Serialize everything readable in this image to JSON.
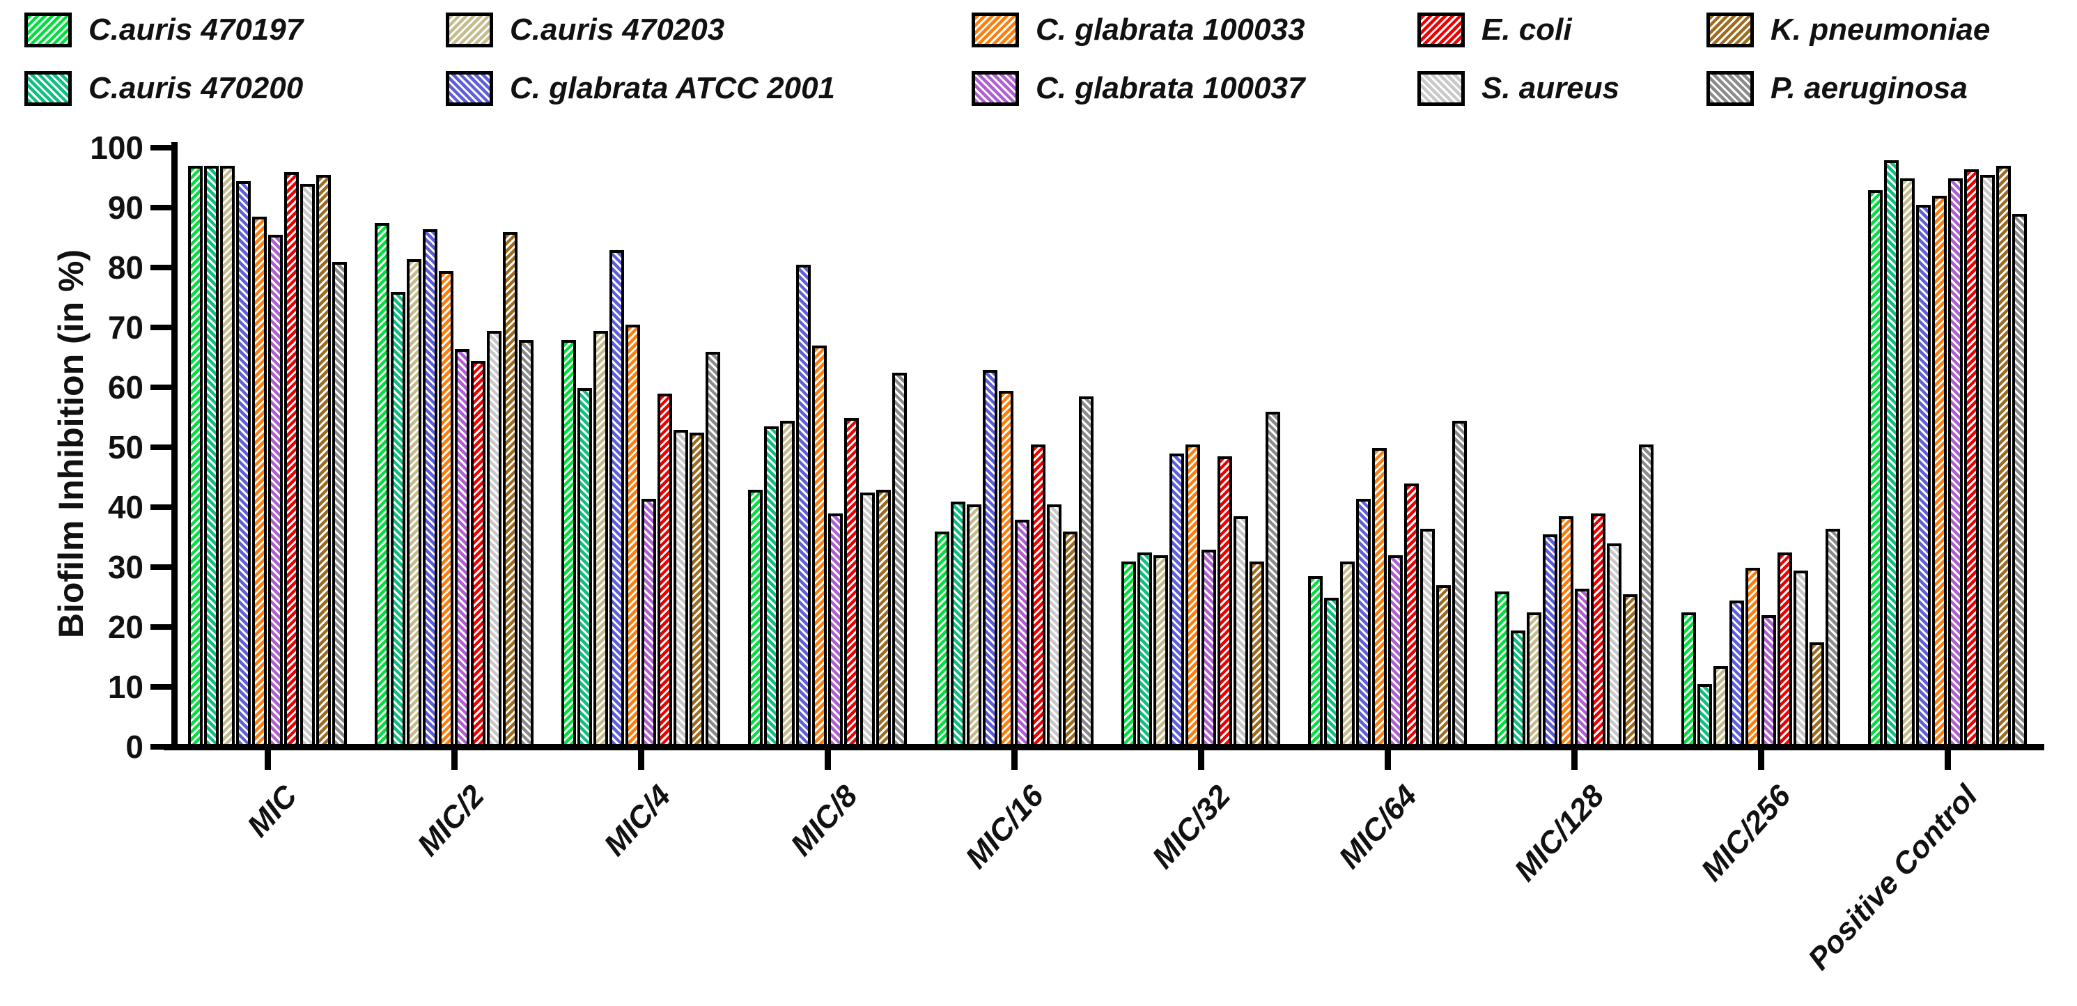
{
  "figure": {
    "background": "#ffffff",
    "axis_color": "#000000",
    "text_color": "#111111"
  },
  "chart_data": {
    "type": "bar",
    "title": "",
    "xlabel": "",
    "ylabel": "Biofilm Inhibition (in %)",
    "ylim": [
      0,
      100
    ],
    "ytick_step": 10,
    "ytick_labels": [
      "0",
      "10",
      "20",
      "30",
      "40",
      "50",
      "60",
      "70",
      "80",
      "90",
      "100"
    ],
    "grid": false,
    "legend_position": "top",
    "bar_style": "hatched, black outline",
    "categories": [
      "MIC",
      "MIC/2",
      "MIC/4",
      "MIC/8",
      "MIC/16",
      "MIC/32",
      "MIC/64",
      "MIC/128",
      "MIC/256",
      "Positive Control"
    ],
    "series": [
      {
        "name": "C.auris 470197",
        "color": "#00E03C",
        "hatch": "diagonal-up",
        "values": [
          96,
          86.5,
          67,
          42,
          35,
          30,
          27.5,
          25,
          21.5,
          92
        ]
      },
      {
        "name": "C.auris 470200",
        "color": "#0FBF7F",
        "hatch": "diagonal-down",
        "values": [
          96,
          75,
          59,
          52.5,
          40,
          31.5,
          24,
          18.5,
          9.5,
          97
        ]
      },
      {
        "name": "C.auris 470203",
        "color": "#C5BC8E",
        "hatch": "diagonal-up",
        "values": [
          96,
          80.5,
          68.5,
          53.5,
          39.5,
          31,
          30,
          21.5,
          12.5,
          94
        ]
      },
      {
        "name": "C. glabrata ATCC 2001",
        "color": "#5F5FDC",
        "hatch": "diagonal-down",
        "values": [
          93.5,
          85.5,
          82,
          79.5,
          62,
          48,
          40.5,
          34.5,
          23.5,
          89.5
        ]
      },
      {
        "name": "C. glabrata 100033",
        "color": "#FF7D0A",
        "hatch": "diagonal-up",
        "values": [
          87.5,
          78.5,
          69.5,
          66,
          58.5,
          49.5,
          49,
          37.5,
          29,
          91
        ]
      },
      {
        "name": "C. glabrata 100037",
        "color": "#B05FD3",
        "hatch": "diagonal-down",
        "values": [
          84.5,
          65.5,
          40.5,
          38,
          37,
          32,
          31,
          25.5,
          21,
          94
        ]
      },
      {
        "name": "E. coli",
        "color": "#EE0000",
        "hatch": "diagonal-up",
        "values": [
          95,
          63.5,
          58,
          54,
          49.5,
          47.5,
          43,
          38,
          31.5,
          95.5
        ]
      },
      {
        "name": "S. aureus",
        "color": "#C9C9C9",
        "hatch": "diagonal-down",
        "values": [
          93,
          68.5,
          52,
          41.5,
          39.5,
          37.5,
          35.5,
          33,
          28.5,
          94.5
        ]
      },
      {
        "name": "K. pneumoniae",
        "color": "#9E6B1F",
        "hatch": "diagonal-up",
        "values": [
          94.5,
          85,
          51.5,
          42,
          35,
          30,
          26,
          24.5,
          16.5,
          96
        ]
      },
      {
        "name": "P. aeruginosa",
        "color": "#8C8C8C",
        "hatch": "diagonal-down",
        "values": [
          80,
          67,
          65,
          61.5,
          57.5,
          55,
          53.5,
          49.5,
          35.5,
          88
        ]
      }
    ]
  }
}
